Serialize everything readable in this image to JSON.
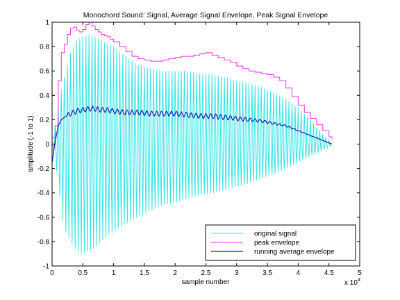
{
  "chart_data": {
    "type": "line",
    "title": "Monochord Sound: Signal, Average Signal Envelope, Peak Signal Envelope",
    "xlabel": "sample number",
    "ylabel": "amplitude (-1 to 1)",
    "x_exponent": "x 10",
    "x_exponent_power": "4",
    "xlim": [
      0,
      5
    ],
    "ylim": [
      -1,
      1
    ],
    "x_ticks": [
      0,
      0.5,
      1,
      1.5,
      2,
      2.5,
      3,
      3.5,
      4,
      4.5,
      5
    ],
    "x_tick_labels": [
      "0",
      "0.5",
      "1",
      "1.5",
      "2",
      "2.5",
      "3",
      "3.5",
      "4",
      "4.5",
      "5"
    ],
    "y_ticks": [
      -1,
      -0.8,
      -0.6,
      -0.4,
      -0.2,
      0,
      0.2,
      0.4,
      0.6,
      0.8,
      1
    ],
    "y_tick_labels": [
      "-1",
      "-0.8",
      "-0.6",
      "-0.4",
      "-0.2",
      "0",
      "0.2",
      "0.4",
      "0.6",
      "0.8",
      "1"
    ],
    "grid": false,
    "legend_position": "bottom-right",
    "series": [
      {
        "name": "original signal",
        "color": "#33e5e5",
        "kind": "oscillating signal",
        "pos_envelope": {
          "x": [
            0,
            0.05,
            0.1,
            0.15,
            0.2,
            0.3,
            0.4,
            0.5,
            0.6,
            0.7,
            0.8,
            0.9,
            1.0,
            1.2,
            1.4,
            1.6,
            1.8,
            2.0,
            2.2,
            2.4,
            2.6,
            2.8,
            3.0,
            3.2,
            3.4,
            3.6,
            3.8,
            4.0,
            4.2,
            4.4,
            4.55
          ],
          "y": [
            0,
            0.15,
            0.3,
            0.45,
            0.55,
            0.75,
            0.85,
            0.88,
            0.9,
            0.88,
            0.85,
            0.82,
            0.8,
            0.72,
            0.65,
            0.62,
            0.6,
            0.6,
            0.6,
            0.58,
            0.57,
            0.55,
            0.52,
            0.5,
            0.47,
            0.42,
            0.37,
            0.3,
            0.2,
            0.08,
            0.01
          ]
        },
        "neg_envelope": {
          "x": [
            0,
            0.05,
            0.1,
            0.15,
            0.2,
            0.3,
            0.4,
            0.5,
            0.6,
            0.7,
            0.8,
            0.9,
            1.0,
            1.2,
            1.4,
            1.6,
            1.8,
            2.0,
            2.2,
            2.4,
            2.6,
            2.8,
            3.0,
            3.2,
            3.4,
            3.6,
            3.8,
            4.0,
            4.2,
            4.4,
            4.55
          ],
          "y": [
            0,
            -0.15,
            -0.3,
            -0.55,
            -0.7,
            -0.8,
            -0.88,
            -0.9,
            -0.88,
            -0.85,
            -0.8,
            -0.75,
            -0.72,
            -0.65,
            -0.6,
            -0.55,
            -0.5,
            -0.48,
            -0.45,
            -0.42,
            -0.4,
            -0.38,
            -0.35,
            -0.32,
            -0.28,
            -0.25,
            -0.2,
            -0.15,
            -0.1,
            -0.05,
            -0.01
          ]
        },
        "period": 0.05
      },
      {
        "name": "peak envelope",
        "color": "#e833e8",
        "kind": "stepped",
        "x": [
          0,
          0.05,
          0.1,
          0.15,
          0.2,
          0.25,
          0.3,
          0.35,
          0.4,
          0.45,
          0.5,
          0.55,
          0.6,
          0.65,
          0.7,
          0.75,
          0.8,
          0.85,
          0.9,
          0.95,
          1.0,
          1.1,
          1.2,
          1.3,
          1.4,
          1.5,
          1.6,
          1.7,
          1.8,
          1.9,
          2.0,
          2.1,
          2.2,
          2.3,
          2.4,
          2.5,
          2.6,
          2.7,
          2.8,
          2.9,
          3.0,
          3.1,
          3.2,
          3.3,
          3.4,
          3.5,
          3.6,
          3.7,
          3.8,
          3.9,
          4.0,
          4.1,
          4.2,
          4.3,
          4.4,
          4.5,
          4.55
        ],
        "y": [
          0.05,
          0.15,
          0.52,
          0.75,
          0.82,
          0.9,
          0.95,
          0.96,
          0.93,
          0.92,
          0.94,
          0.98,
          1.0,
          0.97,
          0.94,
          0.92,
          0.9,
          0.89,
          0.88,
          0.86,
          0.84,
          0.8,
          0.76,
          0.72,
          0.7,
          0.69,
          0.68,
          0.68,
          0.69,
          0.7,
          0.71,
          0.72,
          0.72,
          0.73,
          0.74,
          0.75,
          0.73,
          0.71,
          0.69,
          0.67,
          0.64,
          0.62,
          0.6,
          0.59,
          0.58,
          0.57,
          0.55,
          0.52,
          0.46,
          0.39,
          0.32,
          0.26,
          0.21,
          0.16,
          0.11,
          0.06,
          0.04
        ]
      },
      {
        "name": "running average envelope",
        "color": "#1a1ab3",
        "kind": "smooth with ripple",
        "x": [
          0,
          0.05,
          0.1,
          0.15,
          0.2,
          0.3,
          0.4,
          0.5,
          0.6,
          0.7,
          0.8,
          0.9,
          1.0,
          1.2,
          1.4,
          1.6,
          1.8,
          2.0,
          2.2,
          2.4,
          2.6,
          2.8,
          3.0,
          3.2,
          3.4,
          3.6,
          3.8,
          4.0,
          4.2,
          4.4,
          4.55
        ],
        "y": [
          -0.15,
          0.02,
          0.15,
          0.2,
          0.22,
          0.25,
          0.27,
          0.28,
          0.29,
          0.29,
          0.28,
          0.28,
          0.27,
          0.26,
          0.26,
          0.25,
          0.25,
          0.25,
          0.24,
          0.23,
          0.23,
          0.22,
          0.21,
          0.2,
          0.19,
          0.17,
          0.15,
          0.11,
          0.07,
          0.03,
          0.0
        ]
      }
    ]
  }
}
